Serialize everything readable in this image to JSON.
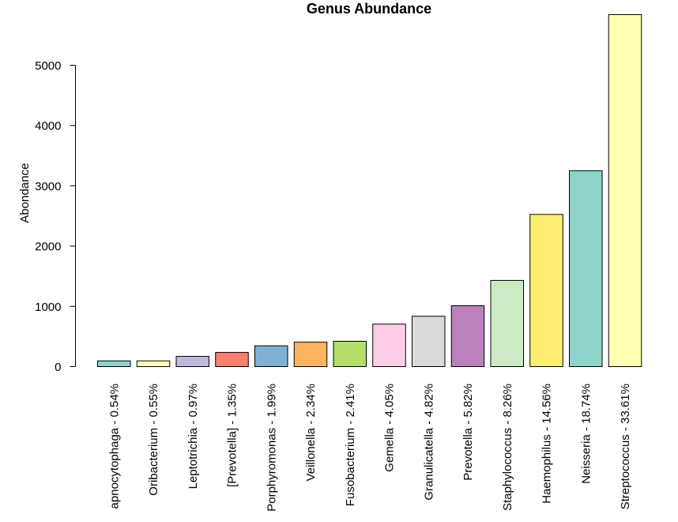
{
  "chart_data": {
    "type": "bar",
    "title": "Genus Abundance",
    "xlabel": "",
    "ylabel": "Abondance",
    "ylim": [
      0,
      5850
    ],
    "yticks": [
      0,
      1000,
      2000,
      3000,
      4000,
      5000
    ],
    "grid": false,
    "legend": "none",
    "categories": [
      "apnocytophaga - 0.54%",
      "Oribacterium - 0.55%",
      "Leptotrichia - 0.97%",
      "[Prevotella] - 1.35%",
      "Porphyromonas - 1.99%",
      "Veillonella - 2.34%",
      "Fusobacterium - 2.41%",
      "Gemella - 4.05%",
      "Granulicatella - 4.82%",
      "Prevotella - 5.82%",
      "Staphylococcus - 8.26%",
      "Haemophilus - 14.56%",
      "Neisseria - 18.74%",
      "Streptococcus - 33.61%"
    ],
    "values": [
      95,
      95,
      170,
      235,
      345,
      405,
      420,
      705,
      835,
      1010,
      1430,
      2525,
      3250,
      5840
    ],
    "colors": [
      "#8DD3C7",
      "#FFFFB3",
      "#BEBADA",
      "#FB8072",
      "#80B1D3",
      "#FDB462",
      "#B3DE69",
      "#FCCDE5",
      "#D9D9D9",
      "#BC80BD",
      "#CCEBC5",
      "#FFED6F",
      "#8DD3C7",
      "#FFFFB3"
    ]
  }
}
